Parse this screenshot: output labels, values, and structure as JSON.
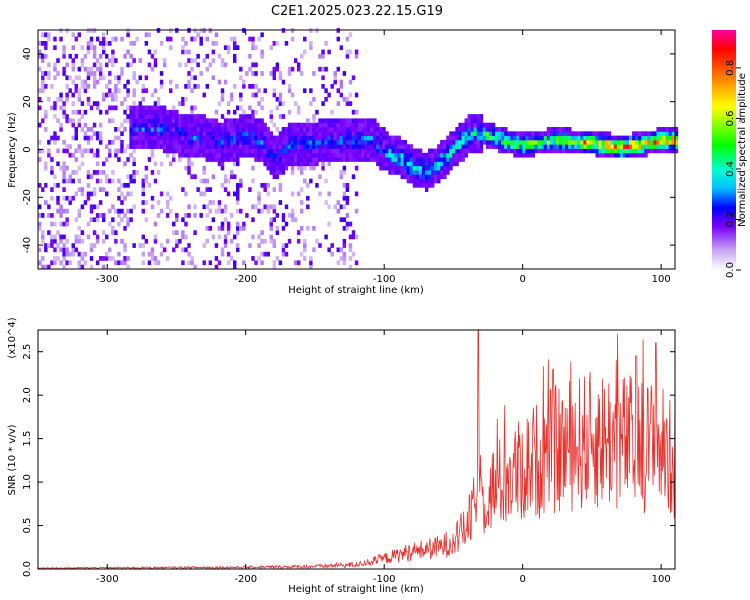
{
  "figure": {
    "title": "C2E1.2025.023.22.15.G19"
  },
  "colors": {
    "snr_line": "#e8302c",
    "colormap": [
      "#ffffff",
      "#c8a8f0",
      "#7a00ff",
      "#0000ff",
      "#00bfff",
      "#00ffcc",
      "#00ff00",
      "#ffff00",
      "#ff8000",
      "#ff0000",
      "#ff00a0"
    ]
  },
  "chart_data": [
    {
      "type": "heatmap",
      "xlabel": "Height of straight line (km)",
      "ylabel": "Frequency (Hz)",
      "xlim": [
        -350,
        110
      ],
      "ylim": [
        -50,
        50
      ],
      "xticks": [
        -300,
        -200,
        -100,
        0,
        100
      ],
      "yticks": [
        -40,
        -20,
        0,
        20,
        40
      ],
      "colorbar": {
        "label": "Normalized spectral amplitude",
        "range": [
          0,
          0.95
        ],
        "ticks": [
          0.0,
          0.2,
          0.4,
          0.6,
          0.8
        ]
      },
      "ridge": {
        "x": [
          -280,
          -270,
          -260,
          -250,
          -240,
          -230,
          -220,
          -210,
          -200,
          -190,
          -180,
          -170,
          -160,
          -150,
          -140,
          -130,
          -120,
          -110,
          -100,
          -90,
          -80,
          -70,
          -60,
          -50,
          -40,
          -30,
          -20,
          -10,
          0,
          10,
          20,
          30,
          40,
          50,
          60,
          70,
          80,
          90,
          100,
          110
        ],
        "freq": [
          8,
          8,
          8,
          6,
          4,
          4,
          2,
          3,
          5,
          3,
          -5,
          1,
          2,
          2,
          3,
          3,
          3,
          4,
          -2,
          -4,
          -8,
          -10,
          -6,
          0,
          5,
          6,
          4,
          2,
          1,
          2,
          3,
          3,
          2,
          2,
          1,
          0,
          1,
          2,
          3,
          3
        ]
      }
    },
    {
      "type": "line",
      "xlabel": "Height of straight line (km)",
      "ylabel": "SNR (10 * v/v)",
      "yscale_label": "(x10^4)",
      "xlim": [
        -350,
        110
      ],
      "ylim": [
        0,
        2.75
      ],
      "xticks": [
        -300,
        -200,
        -100,
        0,
        100
      ],
      "yticks": [
        0.0,
        0.5,
        1.0,
        1.5,
        2.0,
        2.5
      ],
      "envelope": {
        "x": [
          -350,
          -200,
          -150,
          -120,
          -100,
          -80,
          -60,
          -50,
          -40,
          -35,
          -30,
          -20,
          0,
          20,
          40,
          60,
          80,
          100,
          110
        ],
        "y": [
          0.01,
          0.02,
          0.03,
          0.05,
          0.12,
          0.2,
          0.25,
          0.32,
          0.5,
          0.7,
          0.8,
          0.95,
          1.15,
          1.35,
          1.45,
          1.5,
          1.45,
          1.4,
          1.2
        ]
      },
      "spikes": [
        {
          "x": -32,
          "y": 2.75
        },
        {
          "x": 96,
          "y": 2.6
        },
        {
          "x": 22,
          "y": 2.3
        },
        {
          "x": 82,
          "y": 2.45
        }
      ]
    }
  ]
}
